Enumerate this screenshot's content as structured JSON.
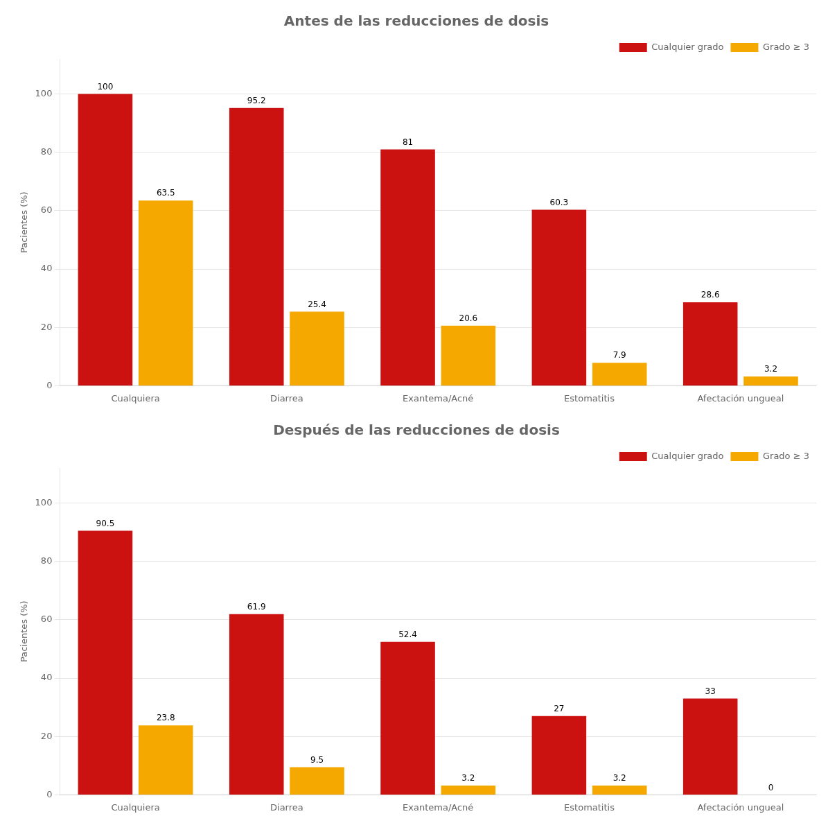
{
  "chart_data": [
    {
      "type": "bar",
      "title": "Antes de las reducciones de dosis",
      "categories": [
        "Cualquiera",
        "Diarrea",
        "Exantema/Acné",
        "Estomatitis",
        "Afectación ungueal"
      ],
      "series": [
        {
          "name": "Cualquier grado",
          "color": "#CC1111",
          "values": [
            100,
            95.2,
            81.0,
            60.3,
            28.6
          ]
        },
        {
          "name": "Grado ≥ 3",
          "color": "#F5A800",
          "values": [
            63.5,
            25.4,
            20.6,
            7.9,
            3.2
          ]
        }
      ],
      "ylabel": "Pacientes (%)",
      "ylim": [
        0,
        112
      ],
      "yticks": [
        0,
        20,
        40,
        60,
        80,
        100
      ],
      "grid": true,
      "legend": "upper right",
      "data_labels": true
    },
    {
      "type": "bar",
      "title": "Después de las reducciones de dosis",
      "categories": [
        "Cualquiera",
        "Diarrea",
        "Exantema/Acné",
        "Estomatitis",
        "Afectación ungueal"
      ],
      "series": [
        {
          "name": "Cualquier grado",
          "color": "#CC1111",
          "values": [
            90.5,
            61.9,
            52.4,
            27.0,
            33.0
          ]
        },
        {
          "name": "Grado ≥ 3",
          "color": "#F5A800",
          "values": [
            23.8,
            9.5,
            3.2,
            3.2,
            0.0
          ]
        }
      ],
      "ylabel": "Pacientes (%)",
      "ylim": [
        0,
        112
      ],
      "yticks": [
        0,
        20,
        40,
        60,
        80,
        100
      ],
      "grid": true,
      "legend": "upper right",
      "data_labels": true
    }
  ]
}
